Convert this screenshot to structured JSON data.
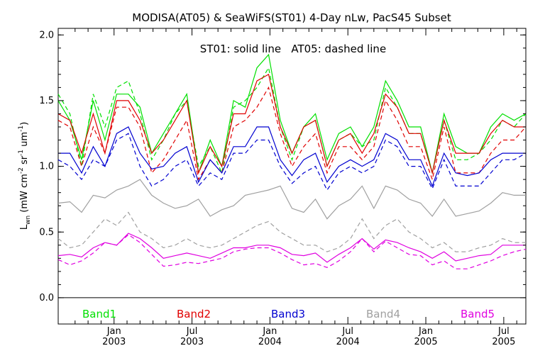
{
  "chart_data": {
    "type": "line",
    "title": "MODISA(AT05) & SeaWiFS(ST01) 4-Day nLw, PacS45 Subset",
    "annotation": "ST01: solid line   AT05: dashed line",
    "ylabel": "L_wn (mW cm^-2 sr^-1 um^-1)",
    "ylabel_parts": {
      "main": "L",
      "sub": "wn",
      "units_prefix": "(mW cm",
      "exp1": "-2",
      "mid": " sr",
      "exp2": "-1",
      "mid2": " um",
      "exp3": "-1",
      "close": ")"
    },
    "ylim": [
      -0.2,
      2.05
    ],
    "yticks": [
      0.0,
      0.5,
      1.0,
      1.5,
      2.0
    ],
    "ytick_labels": [
      "0.0",
      "0.5",
      "1.0",
      "1.5",
      "2.0"
    ],
    "xlim": [
      0,
      36
    ],
    "x_major_ticks": [
      {
        "x": 4.3,
        "label1": "Jan",
        "label2": "2003"
      },
      {
        "x": 10.3,
        "label1": "Jul",
        "label2": "2003"
      },
      {
        "x": 16.3,
        "label1": "Jan",
        "label2": "2004"
      },
      {
        "x": 22.3,
        "label1": "Jul",
        "label2": "2004"
      },
      {
        "x": 28.3,
        "label1": "Jan",
        "label2": "2005"
      },
      {
        "x": 34.3,
        "label1": "Jul",
        "label2": "2005"
      }
    ],
    "x_minor_ticks": [
      1.3,
      2.3,
      3.3,
      5.3,
      6.3,
      7.3,
      8.3,
      9.3,
      11.3,
      12.3,
      13.3,
      14.3,
      15.3,
      17.3,
      18.3,
      19.3,
      20.3,
      21.3,
      23.3,
      24.3,
      25.3,
      26.3,
      27.3,
      29.3,
      30.3,
      31.3,
      32.3,
      33.3,
      35.3
    ],
    "reference_line_y": 0.0,
    "x": [
      0,
      0.9,
      1.8,
      2.7,
      3.6,
      4.5,
      5.4,
      6.3,
      7.2,
      8.1,
      9.0,
      9.9,
      10.8,
      11.7,
      12.6,
      13.5,
      14.4,
      15.3,
      16.2,
      17.1,
      18.0,
      18.9,
      19.8,
      20.7,
      21.6,
      22.5,
      23.4,
      24.3,
      25.2,
      26.1,
      27.0,
      27.9,
      28.8,
      29.7,
      30.6,
      31.5,
      32.4,
      33.3,
      34.2,
      35.1,
      36.0
    ],
    "series": [
      {
        "name": "Band1",
        "color": "#00e000",
        "dash": false,
        "values": [
          1.5,
          1.35,
          1.05,
          1.5,
          1.2,
          1.55,
          1.55,
          1.45,
          1.1,
          1.25,
          1.4,
          1.55,
          0.95,
          1.2,
          1.0,
          1.5,
          1.45,
          1.75,
          1.85,
          1.35,
          1.1,
          1.3,
          1.4,
          1.05,
          1.25,
          1.3,
          1.15,
          1.3,
          1.65,
          1.5,
          1.3,
          1.3,
          0.95,
          1.4,
          1.15,
          1.1,
          1.1,
          1.3,
          1.4,
          1.35,
          1.4
        ]
      },
      {
        "name": "",
        "color": "#00e000",
        "dash": true,
        "values": [
          1.55,
          1.4,
          1.0,
          1.55,
          1.3,
          1.6,
          1.65,
          1.4,
          1.05,
          1.2,
          1.4,
          1.5,
          1.0,
          1.15,
          0.95,
          1.45,
          1.5,
          1.6,
          1.75,
          1.3,
          1.05,
          1.3,
          1.35,
          1.0,
          1.2,
          1.25,
          1.15,
          1.2,
          1.6,
          1.45,
          1.25,
          1.25,
          0.95,
          1.35,
          1.05,
          1.05,
          1.1,
          1.2,
          1.35,
          1.3,
          1.4
        ]
      },
      {
        "name": "Band2",
        "color": "#e00000",
        "dash": false,
        "values": [
          1.4,
          1.35,
          1.1,
          1.4,
          1.1,
          1.5,
          1.5,
          1.35,
          1.1,
          1.2,
          1.35,
          1.5,
          0.95,
          1.15,
          1.0,
          1.4,
          1.4,
          1.65,
          1.7,
          1.3,
          1.1,
          1.3,
          1.35,
          1.0,
          1.2,
          1.25,
          1.1,
          1.25,
          1.55,
          1.45,
          1.25,
          1.25,
          0.95,
          1.35,
          1.1,
          1.1,
          1.1,
          1.25,
          1.35,
          1.3,
          1.3
        ]
      },
      {
        "name": "",
        "color": "#e00000",
        "dash": true,
        "values": [
          1.35,
          1.3,
          1.0,
          1.3,
          1.1,
          1.45,
          1.45,
          1.3,
          0.95,
          1.05,
          1.2,
          1.35,
          0.9,
          1.05,
          0.95,
          1.3,
          1.35,
          1.45,
          1.6,
          1.25,
          1.0,
          1.15,
          1.25,
          0.95,
          1.15,
          1.15,
          1.05,
          1.15,
          1.5,
          1.35,
          1.15,
          1.15,
          0.9,
          1.3,
          0.95,
          0.95,
          0.95,
          1.1,
          1.2,
          1.2,
          1.3
        ]
      },
      {
        "name": "Band3",
        "color": "#0000d0",
        "dash": false,
        "values": [
          1.1,
          1.1,
          0.95,
          1.15,
          1.0,
          1.25,
          1.3,
          1.1,
          0.98,
          1.0,
          1.1,
          1.15,
          0.88,
          1.05,
          0.95,
          1.15,
          1.15,
          1.3,
          1.3,
          1.05,
          0.93,
          1.05,
          1.1,
          0.88,
          1.0,
          1.05,
          1.0,
          1.05,
          1.25,
          1.2,
          1.05,
          1.05,
          0.85,
          1.1,
          0.95,
          0.93,
          0.95,
          1.05,
          1.1,
          1.1,
          1.1
        ]
      },
      {
        "name": "",
        "color": "#0000d0",
        "dash": true,
        "values": [
          1.05,
          1.0,
          0.9,
          1.05,
          1.0,
          1.2,
          1.25,
          1.0,
          0.85,
          0.9,
          1.0,
          1.05,
          0.85,
          0.95,
          0.9,
          1.1,
          1.1,
          1.2,
          1.2,
          1.0,
          0.87,
          0.95,
          1.0,
          0.82,
          0.95,
          1.0,
          0.95,
          1.0,
          1.2,
          1.15,
          1.0,
          1.0,
          0.83,
          1.05,
          0.85,
          0.85,
          0.85,
          0.95,
          1.05,
          1.05,
          1.1
        ]
      },
      {
        "name": "Band4",
        "color": "#a0a0a0",
        "dash": false,
        "values": [
          0.72,
          0.73,
          0.65,
          0.78,
          0.76,
          0.82,
          0.85,
          0.9,
          0.78,
          0.72,
          0.68,
          0.7,
          0.75,
          0.62,
          0.67,
          0.7,
          0.78,
          0.8,
          0.82,
          0.85,
          0.68,
          0.65,
          0.75,
          0.6,
          0.7,
          0.75,
          0.85,
          0.68,
          0.85,
          0.82,
          0.75,
          0.72,
          0.62,
          0.75,
          0.62,
          0.64,
          0.66,
          0.72,
          0.8,
          0.78,
          0.78
        ]
      },
      {
        "name": "",
        "color": "#a0a0a0",
        "dash": true,
        "values": [
          0.45,
          0.38,
          0.4,
          0.5,
          0.6,
          0.55,
          0.65,
          0.5,
          0.45,
          0.38,
          0.4,
          0.45,
          0.4,
          0.38,
          0.4,
          0.45,
          0.5,
          0.55,
          0.58,
          0.5,
          0.45,
          0.4,
          0.4,
          0.35,
          0.38,
          0.45,
          0.6,
          0.45,
          0.55,
          0.6,
          0.5,
          0.45,
          0.38,
          0.42,
          0.35,
          0.35,
          0.38,
          0.4,
          0.45,
          0.42,
          0.42
        ]
      },
      {
        "name": "Band5",
        "color": "#e000e0",
        "dash": false,
        "values": [
          0.32,
          0.33,
          0.31,
          0.38,
          0.42,
          0.4,
          0.49,
          0.45,
          0.38,
          0.3,
          0.32,
          0.34,
          0.32,
          0.3,
          0.34,
          0.38,
          0.38,
          0.4,
          0.4,
          0.38,
          0.33,
          0.32,
          0.34,
          0.27,
          0.33,
          0.38,
          0.45,
          0.37,
          0.44,
          0.42,
          0.38,
          0.35,
          0.3,
          0.35,
          0.28,
          0.3,
          0.32,
          0.33,
          0.4,
          0.4,
          0.4
        ]
      },
      {
        "name": "",
        "color": "#e000e0",
        "dash": true,
        "values": [
          0.29,
          0.25,
          0.28,
          0.34,
          0.42,
          0.4,
          0.48,
          0.42,
          0.33,
          0.24,
          0.25,
          0.27,
          0.26,
          0.28,
          0.3,
          0.35,
          0.37,
          0.38,
          0.38,
          0.34,
          0.29,
          0.25,
          0.26,
          0.23,
          0.28,
          0.35,
          0.45,
          0.35,
          0.43,
          0.38,
          0.33,
          0.32,
          0.25,
          0.28,
          0.22,
          0.22,
          0.25,
          0.28,
          0.32,
          0.35,
          0.37
        ]
      }
    ],
    "band_labels": [
      "Band1",
      "Band2",
      "Band3",
      "Band4",
      "Band5"
    ],
    "band_label_colors": [
      "#00e000",
      "#e00000",
      "#0000d0",
      "#a0a0a0",
      "#e000e0"
    ],
    "grid": false,
    "legend_position": "bottom"
  }
}
